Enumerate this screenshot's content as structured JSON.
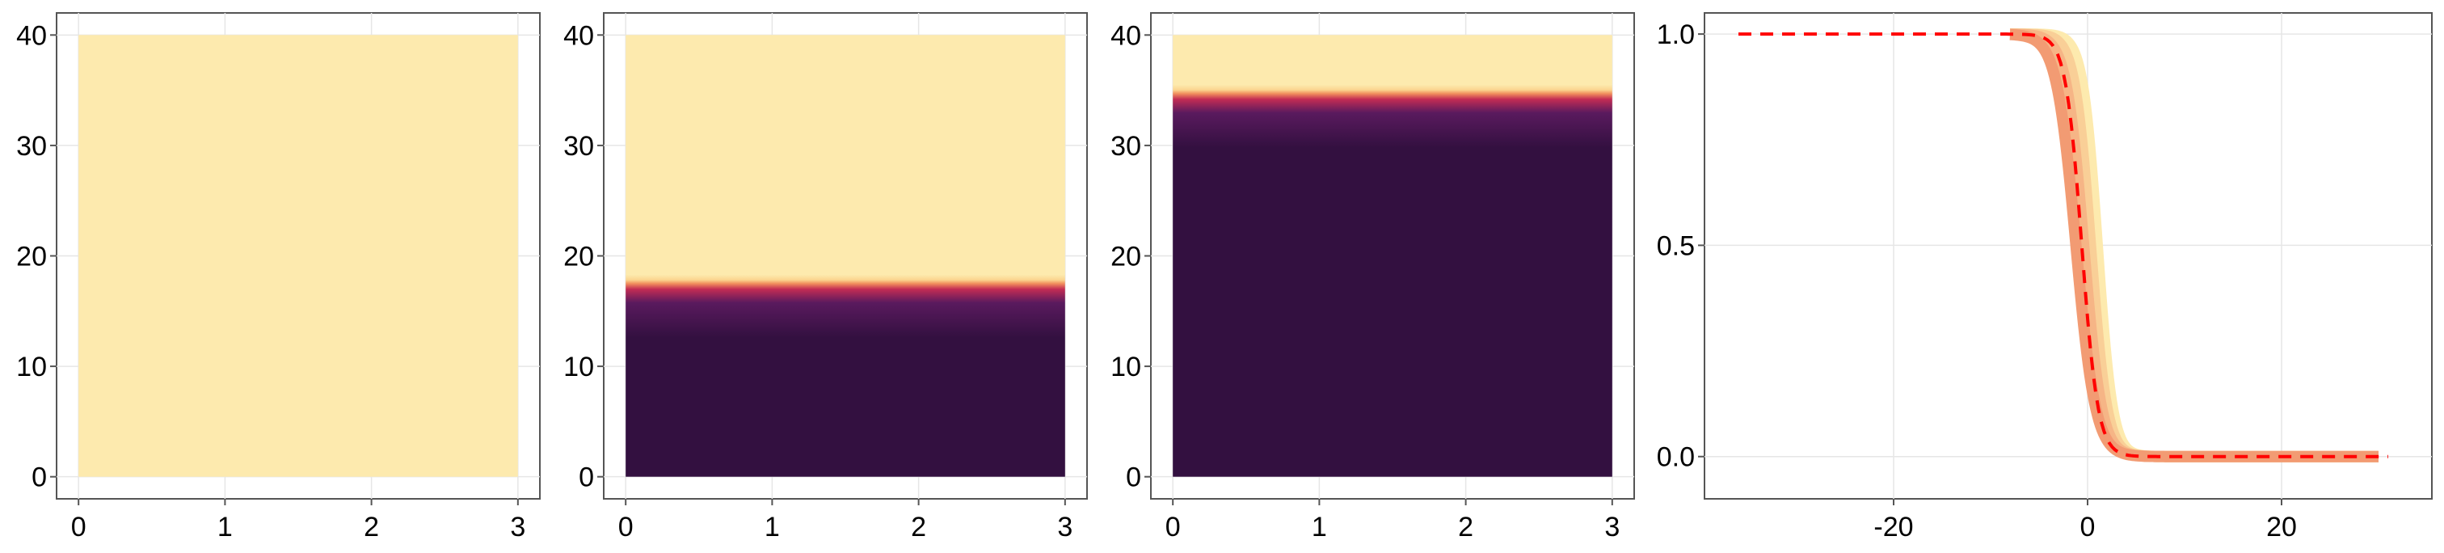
{
  "chart_data": [
    {
      "type": "heatmap",
      "x_ticks": [
        "0",
        "1",
        "2",
        "3"
      ],
      "y_ticks": [
        "0",
        "10",
        "20",
        "30",
        "40"
      ],
      "xlim": [
        -0.15,
        3.15
      ],
      "ylim": [
        -2,
        42
      ],
      "x_extent": [
        0,
        3
      ],
      "y_extent": [
        0,
        40
      ],
      "front_y": null,
      "grid": true
    },
    {
      "type": "heatmap",
      "x_ticks": [
        "0",
        "1",
        "2",
        "3"
      ],
      "y_ticks": [
        "0",
        "10",
        "20",
        "30",
        "40"
      ],
      "xlim": [
        -0.15,
        3.15
      ],
      "ylim": [
        -2,
        42
      ],
      "x_extent": [
        0,
        3
      ],
      "y_extent": [
        0,
        40
      ],
      "front_y": 17.5,
      "grid": true
    },
    {
      "type": "heatmap",
      "x_ticks": [
        "0",
        "1",
        "2",
        "3"
      ],
      "y_ticks": [
        "0",
        "10",
        "20",
        "30",
        "40"
      ],
      "xlim": [
        -0.15,
        3.15
      ],
      "ylim": [
        -2,
        42
      ],
      "x_extent": [
        0,
        3
      ],
      "y_extent": [
        0,
        40
      ],
      "front_y": 34.7,
      "grid": true
    },
    {
      "type": "line",
      "x_ticks": [
        "-20",
        "0",
        "20"
      ],
      "y_ticks": [
        "0.0",
        "0.5",
        "1.0"
      ],
      "xlim": [
        -39.5,
        35.5
      ],
      "ylim": [
        -0.1,
        1.05
      ],
      "grid": true,
      "series": [
        {
          "color": "#fdeaae",
          "width": 14,
          "dash": "",
          "x_range": [
            -8,
            30
          ],
          "center": 1.0,
          "steep": 1.3
        },
        {
          "color": "#f9cf97",
          "width": 14,
          "dash": "",
          "x_range": [
            -8,
            30
          ],
          "center": 0.3,
          "steep": 1.2
        },
        {
          "color": "#f6b586",
          "width": 14,
          "dash": "",
          "x_range": [
            -8,
            30
          ],
          "center": -0.4,
          "steep": 1.1
        },
        {
          "color": "#f29b73",
          "width": 14,
          "dash": "",
          "x_range": [
            -8,
            30
          ],
          "center": -1.2,
          "steep": 1.0
        },
        {
          "color": "#ff0000",
          "width": 4,
          "dash": "16,11",
          "x_range": [
            -36,
            31
          ],
          "center": -0.6,
          "steep": 1.2
        }
      ],
      "colors": {
        "dashed_line": "#ff0000"
      }
    }
  ],
  "colors": {
    "heat_low": "#331040",
    "heat_mid": "#c22c54",
    "heat_high": "#fdeaae",
    "frame": "#555555",
    "grid": "#e6e6e6"
  }
}
